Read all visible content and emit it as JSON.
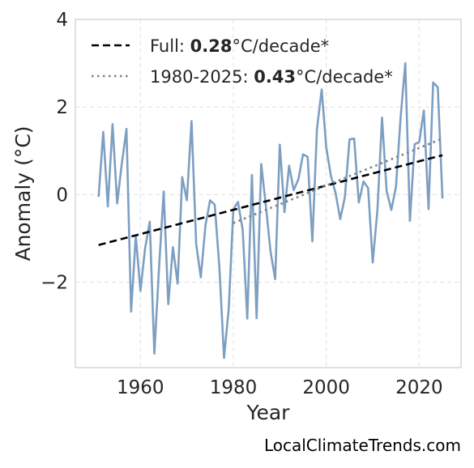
{
  "chart_data": {
    "type": "line",
    "xlabel": "Year",
    "ylabel": "Anomaly (°C)",
    "xlim": [
      1946,
      2029
    ],
    "ylim": [
      -3.95,
      4
    ],
    "xticks": [
      1960,
      1980,
      2000,
      2020
    ],
    "yticks": [
      -2,
      0,
      2,
      4
    ],
    "ytick_labels": [
      "−2",
      "0",
      "2",
      "4"
    ],
    "grid": true,
    "legend_position": "top-left",
    "series": [
      {
        "style": "solid",
        "color": "#7d9fc1",
        "x": [
          1951,
          1952,
          1953,
          1954,
          1955,
          1956,
          1957,
          1958,
          1959,
          1960,
          1961,
          1962,
          1963,
          1964,
          1965,
          1966,
          1967,
          1968,
          1969,
          1970,
          1971,
          1972,
          1973,
          1974,
          1975,
          1976,
          1977,
          1978,
          1979,
          1980,
          1981,
          1982,
          1983,
          1984,
          1985,
          1986,
          1987,
          1988,
          1989,
          1990,
          1991,
          1992,
          1993,
          1994,
          1995,
          1996,
          1997,
          1998,
          1999,
          2000,
          2001,
          2002,
          2003,
          2004,
          2005,
          2006,
          2007,
          2008,
          2009,
          2010,
          2011,
          2012,
          2013,
          2014,
          2015,
          2016,
          2017,
          2018,
          2019,
          2020,
          2021,
          2022,
          2023,
          2024,
          2025
        ],
        "values": [
          -0.05,
          1.43,
          -0.27,
          1.61,
          -0.2,
          0.7,
          1.5,
          -2.67,
          -0.94,
          -2.2,
          -1.24,
          -0.62,
          -3.63,
          -1.7,
          0.07,
          -2.5,
          -1.2,
          -2.03,
          0.4,
          -0.13,
          1.68,
          -1.12,
          -1.89,
          -0.7,
          -0.13,
          -0.23,
          -1.67,
          -3.73,
          -2.6,
          -0.33,
          -0.17,
          -0.8,
          -2.83,
          0.45,
          -2.82,
          0.7,
          -0.25,
          -1.3,
          -1.93,
          1.14,
          -0.4,
          0.66,
          0.1,
          0.35,
          0.92,
          0.86,
          -1.07,
          1.5,
          2.4,
          1.07,
          0.43,
          0.03,
          -0.56,
          -0.06,
          1.26,
          1.28,
          -0.18,
          0.3,
          0.15,
          -1.55,
          -0.36,
          1.76,
          0.08,
          -0.35,
          0.18,
          1.76,
          3.0,
          -0.6,
          1.15,
          1.2,
          1.92,
          -0.33,
          2.56,
          2.45,
          -0.09
        ]
      },
      {
        "name": "Full: ",
        "rate": "0.28",
        "unit": "°C/decade*",
        "style": "dashed",
        "color": "#000000",
        "x": [
          1951,
          2025
        ],
        "values": [
          -1.15,
          0.9
        ]
      },
      {
        "name": "1980-2025: ",
        "rate": "0.43",
        "unit": "°C/decade*",
        "style": "dotted",
        "color": "#808080",
        "x": [
          1980,
          2025
        ],
        "values": [
          -0.65,
          1.28
        ]
      }
    ]
  },
  "watermark": "LocalClimateTrends.com"
}
